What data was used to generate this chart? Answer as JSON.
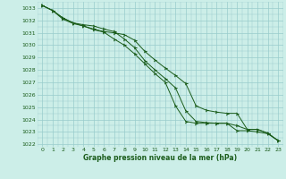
{
  "background_color": "#cceee8",
  "grid_color": "#99cccc",
  "line_color": "#1a5c1a",
  "marker_color": "#1a5c1a",
  "xlabel": "Graphe pression niveau de la mer (hPa)",
  "xlabel_color": "#1a5c1a",
  "ylim": [
    1021.8,
    1033.5
  ],
  "xlim": [
    -0.5,
    23.5
  ],
  "yticks": [
    1022,
    1023,
    1024,
    1025,
    1026,
    1027,
    1028,
    1029,
    1030,
    1031,
    1032,
    1033
  ],
  "xticks": [
    0,
    1,
    2,
    3,
    4,
    5,
    6,
    7,
    8,
    9,
    10,
    11,
    12,
    13,
    14,
    15,
    16,
    17,
    18,
    19,
    20,
    21,
    22,
    23
  ],
  "series1": [
    1033.2,
    1032.8,
    1032.2,
    1031.8,
    1031.55,
    1031.3,
    1031.1,
    1031.0,
    1030.85,
    1030.4,
    1029.5,
    1028.8,
    1028.15,
    1027.55,
    1026.9,
    1025.1,
    1024.75,
    1024.6,
    1024.5,
    1024.5,
    1023.2,
    1023.2,
    1022.9,
    1022.3
  ],
  "series2": [
    1033.2,
    1032.8,
    1032.2,
    1031.8,
    1031.65,
    1031.55,
    1031.3,
    1031.1,
    1030.5,
    1029.8,
    1028.75,
    1028.0,
    1027.3,
    1026.55,
    1024.7,
    1023.85,
    1023.75,
    1023.7,
    1023.7,
    1023.5,
    1023.2,
    1023.2,
    1022.9,
    1022.3
  ],
  "series3": [
    1033.2,
    1032.8,
    1032.1,
    1031.75,
    1031.55,
    1031.25,
    1031.05,
    1030.5,
    1030.0,
    1029.3,
    1028.5,
    1027.7,
    1027.0,
    1025.1,
    1023.85,
    1023.7,
    1023.7,
    1023.7,
    1023.7,
    1023.1,
    1023.1,
    1023.0,
    1022.85,
    1022.3
  ]
}
